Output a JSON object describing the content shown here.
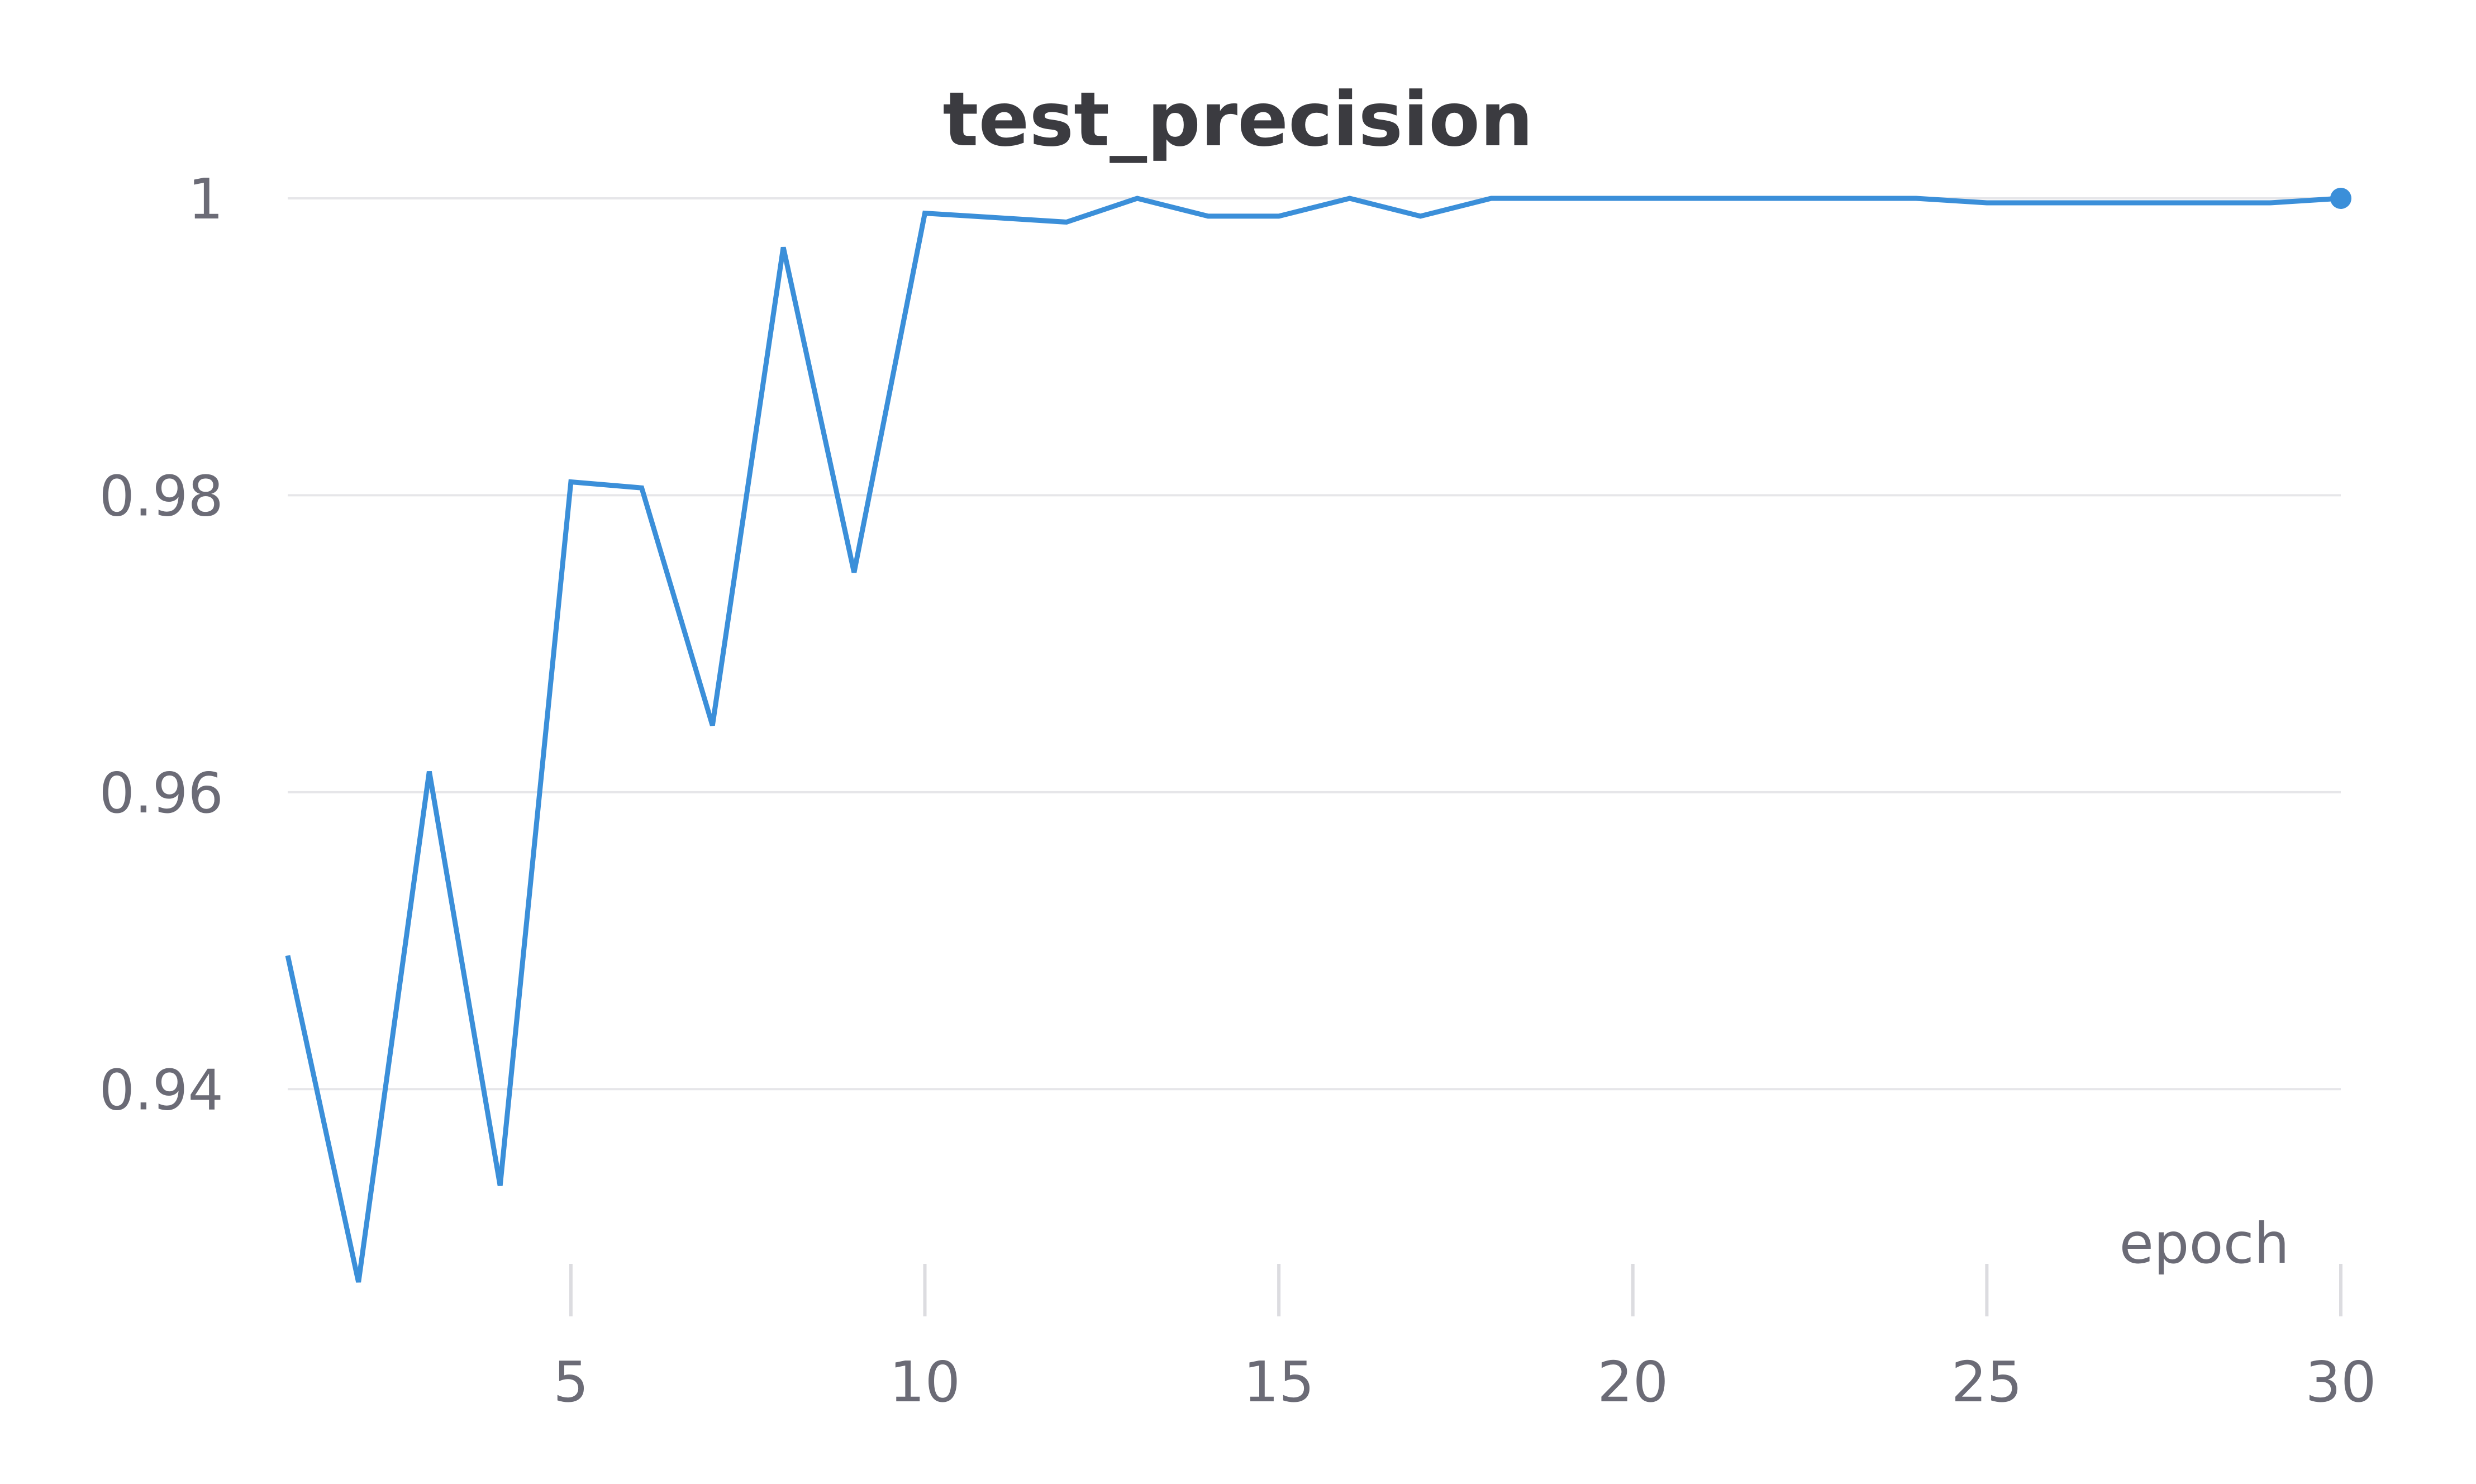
{
  "chart_data": {
    "type": "line",
    "title": "test_precision",
    "xlabel": "epoch",
    "ylabel": "",
    "xlim": [
      1,
      30
    ],
    "ylim": [
      0.9262,
      1.0
    ],
    "x_ticks": [
      5,
      10,
      15,
      20,
      25,
      30
    ],
    "x_tick_labels": [
      "5",
      "10",
      "15",
      "20",
      "25",
      "30"
    ],
    "y_ticks": [
      0.94,
      0.96,
      0.98,
      1.0
    ],
    "y_tick_labels": [
      "0.94",
      "0.96",
      "0.98",
      "1"
    ],
    "grid": true,
    "series": [
      {
        "color": "#3b8fd9",
        "x": [
          1,
          2,
          3,
          4,
          5,
          6,
          7,
          8,
          9,
          10,
          11,
          12,
          13,
          14,
          15,
          16,
          17,
          18,
          19,
          20,
          21,
          22,
          23,
          24,
          25,
          26,
          27,
          28,
          29,
          30
        ],
        "values": [
          0.949,
          0.927,
          0.9614,
          0.9335,
          0.9809,
          0.9805,
          0.9645,
          0.9967,
          0.9748,
          0.999,
          0.9987,
          0.9984,
          1.0,
          0.9988,
          0.9988,
          1.0,
          0.9988,
          1.0,
          1.0,
          1.0,
          1.0,
          1.0,
          1.0,
          1.0,
          0.9997,
          0.9997,
          0.9997,
          0.9997,
          0.9997,
          1.0
        ]
      }
    ]
  }
}
